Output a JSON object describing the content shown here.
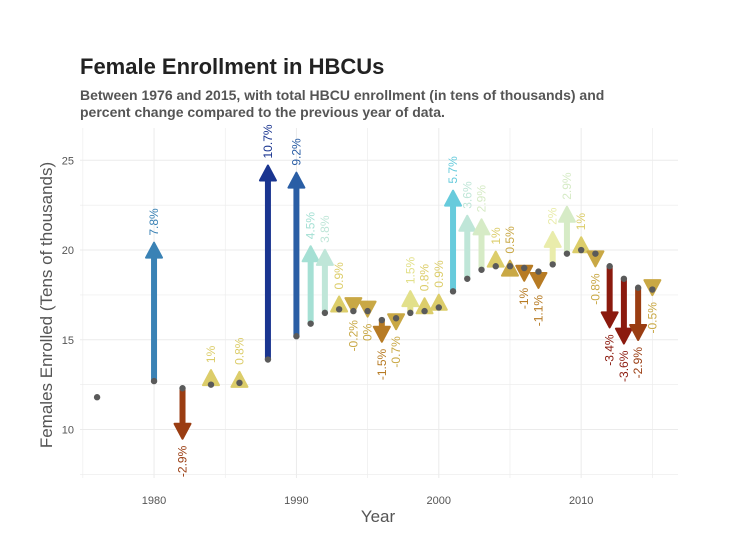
{
  "chart_data": {
    "type": "arrow-scatter",
    "title": "Female Enrollment in HBCUs",
    "subtitle_lines": [
      "Between 1976 and 2015, with total HBCU enrollment (in tens of thousands) and",
      "percent change compared to the previous year of data."
    ],
    "xlabel": "Year",
    "ylabel": "Females Enrolled (Tens of thousands)",
    "xlim": [
      1974.8,
      2016.8
    ],
    "ylim": [
      7.3,
      26.8
    ],
    "x_ticks": [
      1980,
      1990,
      2000,
      2010
    ],
    "y_ticks": [
      10,
      15,
      20,
      25
    ],
    "grid": true,
    "points": [
      {
        "year": 1976,
        "female": 11.8,
        "total": null,
        "pct": ""
      },
      {
        "year": 1980,
        "female": 12.7,
        "total": 20.3,
        "pct": "7.8%"
      },
      {
        "year": 1982,
        "female": 12.3,
        "total": 9.6,
        "pct": "-2.9%"
      },
      {
        "year": 1984,
        "female": 12.5,
        "total": 13.2,
        "pct": "1%"
      },
      {
        "year": 1986,
        "female": 12.6,
        "total": 13.1,
        "pct": "0.8%"
      },
      {
        "year": 1988,
        "female": 13.9,
        "total": 24.6,
        "pct": "10.7%"
      },
      {
        "year": 1990,
        "female": 15.2,
        "total": 24.2,
        "pct": "9.2%"
      },
      {
        "year": 1991,
        "female": 15.9,
        "total": 20.1,
        "pct": "4.5%"
      },
      {
        "year": 1992,
        "female": 16.5,
        "total": 19.9,
        "pct": "3.8%"
      },
      {
        "year": 1993,
        "female": 16.7,
        "total": 17.3,
        "pct": "0.9%"
      },
      {
        "year": 1994,
        "female": 16.6,
        "total": 16.6,
        "pct": "-0.2%"
      },
      {
        "year": 1995,
        "female": 16.6,
        "total": 16.4,
        "pct": "0%"
      },
      {
        "year": 1996,
        "female": 16.1,
        "total": 15.0,
        "pct": "-1.5%"
      },
      {
        "year": 1997,
        "female": 16.2,
        "total": 15.7,
        "pct": "-0.7%"
      },
      {
        "year": 1998,
        "female": 16.5,
        "total": 17.6,
        "pct": "1.5%"
      },
      {
        "year": 1999,
        "female": 16.6,
        "total": 17.2,
        "pct": "0.8%"
      },
      {
        "year": 2000,
        "female": 16.8,
        "total": 17.4,
        "pct": "0.9%"
      },
      {
        "year": 2001,
        "female": 17.7,
        "total": 23.2,
        "pct": "5.7%"
      },
      {
        "year": 2002,
        "female": 18.4,
        "total": 21.8,
        "pct": "3.6%"
      },
      {
        "year": 2003,
        "female": 18.9,
        "total": 21.6,
        "pct": "2.9%"
      },
      {
        "year": 2004,
        "female": 19.1,
        "total": 19.8,
        "pct": "1%"
      },
      {
        "year": 2005,
        "female": 19.1,
        "total": 19.3,
        "pct": "0.5%"
      },
      {
        "year": 2006,
        "female": 19.0,
        "total": 18.4,
        "pct": "-1%"
      },
      {
        "year": 2007,
        "female": 18.8,
        "total": 18.0,
        "pct": "-1.1%"
      },
      {
        "year": 2008,
        "female": 19.2,
        "total": 20.9,
        "pct": "2%"
      },
      {
        "year": 2009,
        "female": 19.8,
        "total": 22.3,
        "pct": "2.9%"
      },
      {
        "year": 2010,
        "female": 20.0,
        "total": 20.6,
        "pct": "1%"
      },
      {
        "year": 2011,
        "female": 19.8,
        "total": 19.2,
        "pct": "-0.8%"
      },
      {
        "year": 2012,
        "female": 19.1,
        "total": 15.8,
        "pct": "-3.4%"
      },
      {
        "year": 2013,
        "female": 18.4,
        "total": 14.9,
        "pct": "-3.6%"
      },
      {
        "year": 2014,
        "female": 17.9,
        "total": 15.1,
        "pct": "-2.9%"
      },
      {
        "year": 2015,
        "female": 17.8,
        "total": 17.6,
        "pct": "-0.5%"
      }
    ],
    "colors": {
      "point": "#5a5a5a",
      "grid": "#ebebeb",
      "scale": [
        {
          "max": -3.3,
          "color": "#8b1a0e"
        },
        {
          "max": -2.0,
          "color": "#9a3d12"
        },
        {
          "max": -0.9,
          "color": "#b77b24"
        },
        {
          "max": 0.5,
          "color": "#c9a845"
        },
        {
          "max": 1.2,
          "color": "#dccd6a"
        },
        {
          "max": 1.8,
          "color": "#e2e08a"
        },
        {
          "max": 2.5,
          "color": "#e9ecab"
        },
        {
          "max": 3.2,
          "color": "#d6ebc6"
        },
        {
          "max": 4.2,
          "color": "#bfe6d8"
        },
        {
          "max": 5.0,
          "color": "#a5e0d4"
        },
        {
          "max": 6.5,
          "color": "#67cbdc"
        },
        {
          "max": 8.5,
          "color": "#3a82b5"
        },
        {
          "max": 9.8,
          "color": "#2a5ea5"
        },
        {
          "max": 99,
          "color": "#1a3590"
        }
      ]
    }
  }
}
